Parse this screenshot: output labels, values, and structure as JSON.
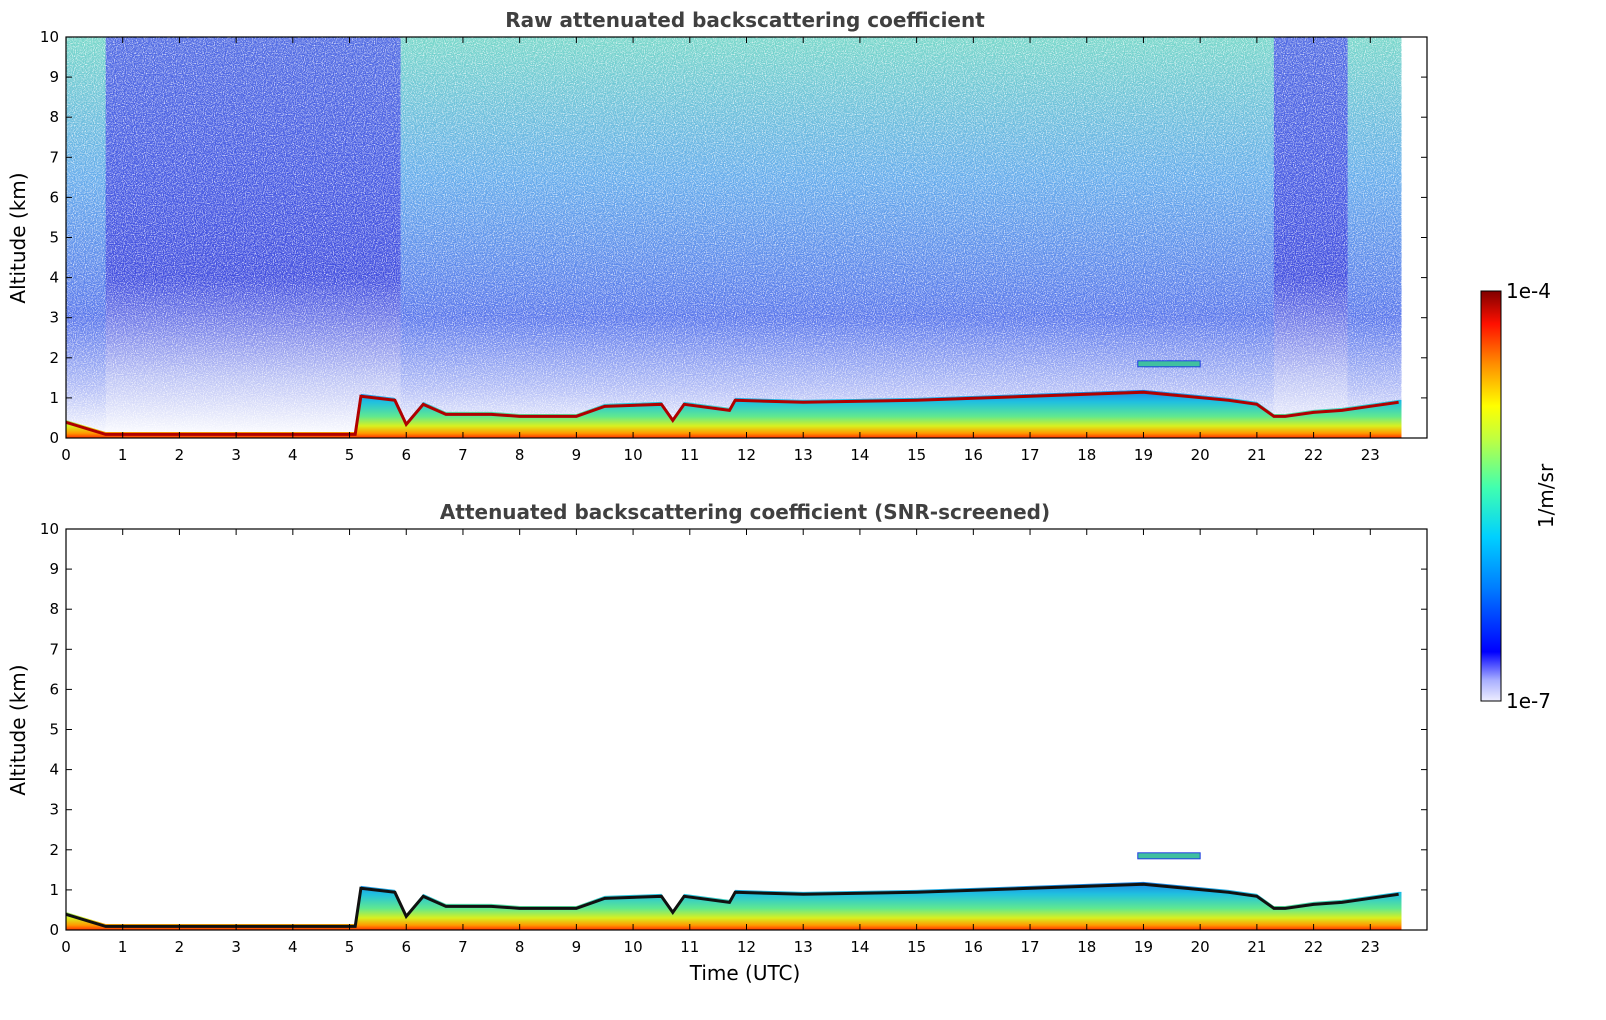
{
  "colors": {
    "jet": [
      "#eeeeff",
      "#0000ff",
      "#00bfff",
      "#33ffcc",
      "#ccff33",
      "#ffff00",
      "#ff8000",
      "#ff2000",
      "#800000"
    ],
    "axes": "#000000",
    "title": "#404040"
  },
  "chart_data": [
    {
      "type": "heatmap",
      "title": "Raw attenuated backscattering coefficient",
      "xlabel": "",
      "ylabel": "Altitude (km)",
      "xlim": [
        0,
        24
      ],
      "ylim": [
        0,
        10
      ],
      "x_ticks": [
        "0",
        "1",
        "2",
        "3",
        "4",
        "5",
        "6",
        "7",
        "8",
        "9",
        "10",
        "11",
        "12",
        "13",
        "14",
        "15",
        "16",
        "17",
        "18",
        "19",
        "20",
        "21",
        "22",
        "23"
      ],
      "y_ticks": [
        "0",
        "1",
        "2",
        "3",
        "4",
        "5",
        "6",
        "7",
        "8",
        "9",
        "10"
      ],
      "data_end_time": 23.55,
      "boundary_layer_top_km": [
        [
          0,
          0.45
        ],
        [
          0.7,
          0.15
        ],
        [
          5.1,
          0.15
        ],
        [
          5.2,
          1.1
        ],
        [
          5.8,
          1.0
        ],
        [
          6.0,
          0.4
        ],
        [
          6.3,
          0.9
        ],
        [
          6.7,
          0.65
        ],
        [
          7.5,
          0.65
        ],
        [
          8,
          0.6
        ],
        [
          9,
          0.6
        ],
        [
          9.5,
          0.85
        ],
        [
          10.5,
          0.9
        ],
        [
          10.7,
          0.5
        ],
        [
          10.9,
          0.9
        ],
        [
          11.7,
          0.75
        ],
        [
          11.8,
          1.0
        ],
        [
          13,
          0.95
        ],
        [
          15,
          1.0
        ],
        [
          17,
          1.1
        ],
        [
          19,
          1.2
        ],
        [
          20.5,
          1.0
        ],
        [
          21,
          0.9
        ],
        [
          21.3,
          0.6
        ],
        [
          21.5,
          0.6
        ],
        [
          22,
          0.7
        ],
        [
          22.5,
          0.75
        ],
        [
          23,
          0.85
        ],
        [
          23.5,
          0.95
        ]
      ],
      "elevated_layer": {
        "time_start": 18.9,
        "time_end": 20.0,
        "altitude_km": 1.85
      },
      "colorbar": {
        "min": "1e-7",
        "max": "1e-4",
        "label": "1/m/sr",
        "scale": "log"
      }
    },
    {
      "type": "heatmap",
      "title": "Attenuated backscattering coefficient (SNR-screened)",
      "xlabel": "Time (UTC)",
      "ylabel": "Altitude (km)",
      "xlim": [
        0,
        24
      ],
      "ylim": [
        0,
        10
      ],
      "x_ticks": [
        "0",
        "1",
        "2",
        "3",
        "4",
        "5",
        "6",
        "7",
        "8",
        "9",
        "10",
        "11",
        "12",
        "13",
        "14",
        "15",
        "16",
        "17",
        "18",
        "19",
        "20",
        "21",
        "22",
        "23"
      ],
      "y_ticks": [
        "0",
        "1",
        "2",
        "3",
        "4",
        "5",
        "6",
        "7",
        "8",
        "9",
        "10"
      ],
      "data_end_time": 23.55,
      "boundary_layer_top_km": [
        [
          0,
          0.45
        ],
        [
          0.7,
          0.15
        ],
        [
          5.1,
          0.15
        ],
        [
          5.2,
          1.1
        ],
        [
          5.8,
          1.0
        ],
        [
          6.0,
          0.4
        ],
        [
          6.3,
          0.9
        ],
        [
          6.7,
          0.65
        ],
        [
          7.5,
          0.65
        ],
        [
          8,
          0.6
        ],
        [
          9,
          0.6
        ],
        [
          9.5,
          0.85
        ],
        [
          10.5,
          0.9
        ],
        [
          10.7,
          0.5
        ],
        [
          10.9,
          0.9
        ],
        [
          11.7,
          0.75
        ],
        [
          11.8,
          1.0
        ],
        [
          13,
          0.95
        ],
        [
          15,
          1.0
        ],
        [
          17,
          1.1
        ],
        [
          19,
          1.2
        ],
        [
          20.5,
          1.0
        ],
        [
          21,
          0.9
        ],
        [
          21.3,
          0.6
        ],
        [
          21.5,
          0.6
        ],
        [
          22,
          0.7
        ],
        [
          22.5,
          0.75
        ],
        [
          23,
          0.85
        ],
        [
          23.5,
          0.95
        ]
      ],
      "elevated_layer": {
        "time_start": 18.9,
        "time_end": 20.0,
        "altitude_km": 1.85
      }
    }
  ],
  "colorbar": {
    "max_label": "1e-4",
    "min_label": "1e-7",
    "unit_label": "1/m/sr"
  }
}
